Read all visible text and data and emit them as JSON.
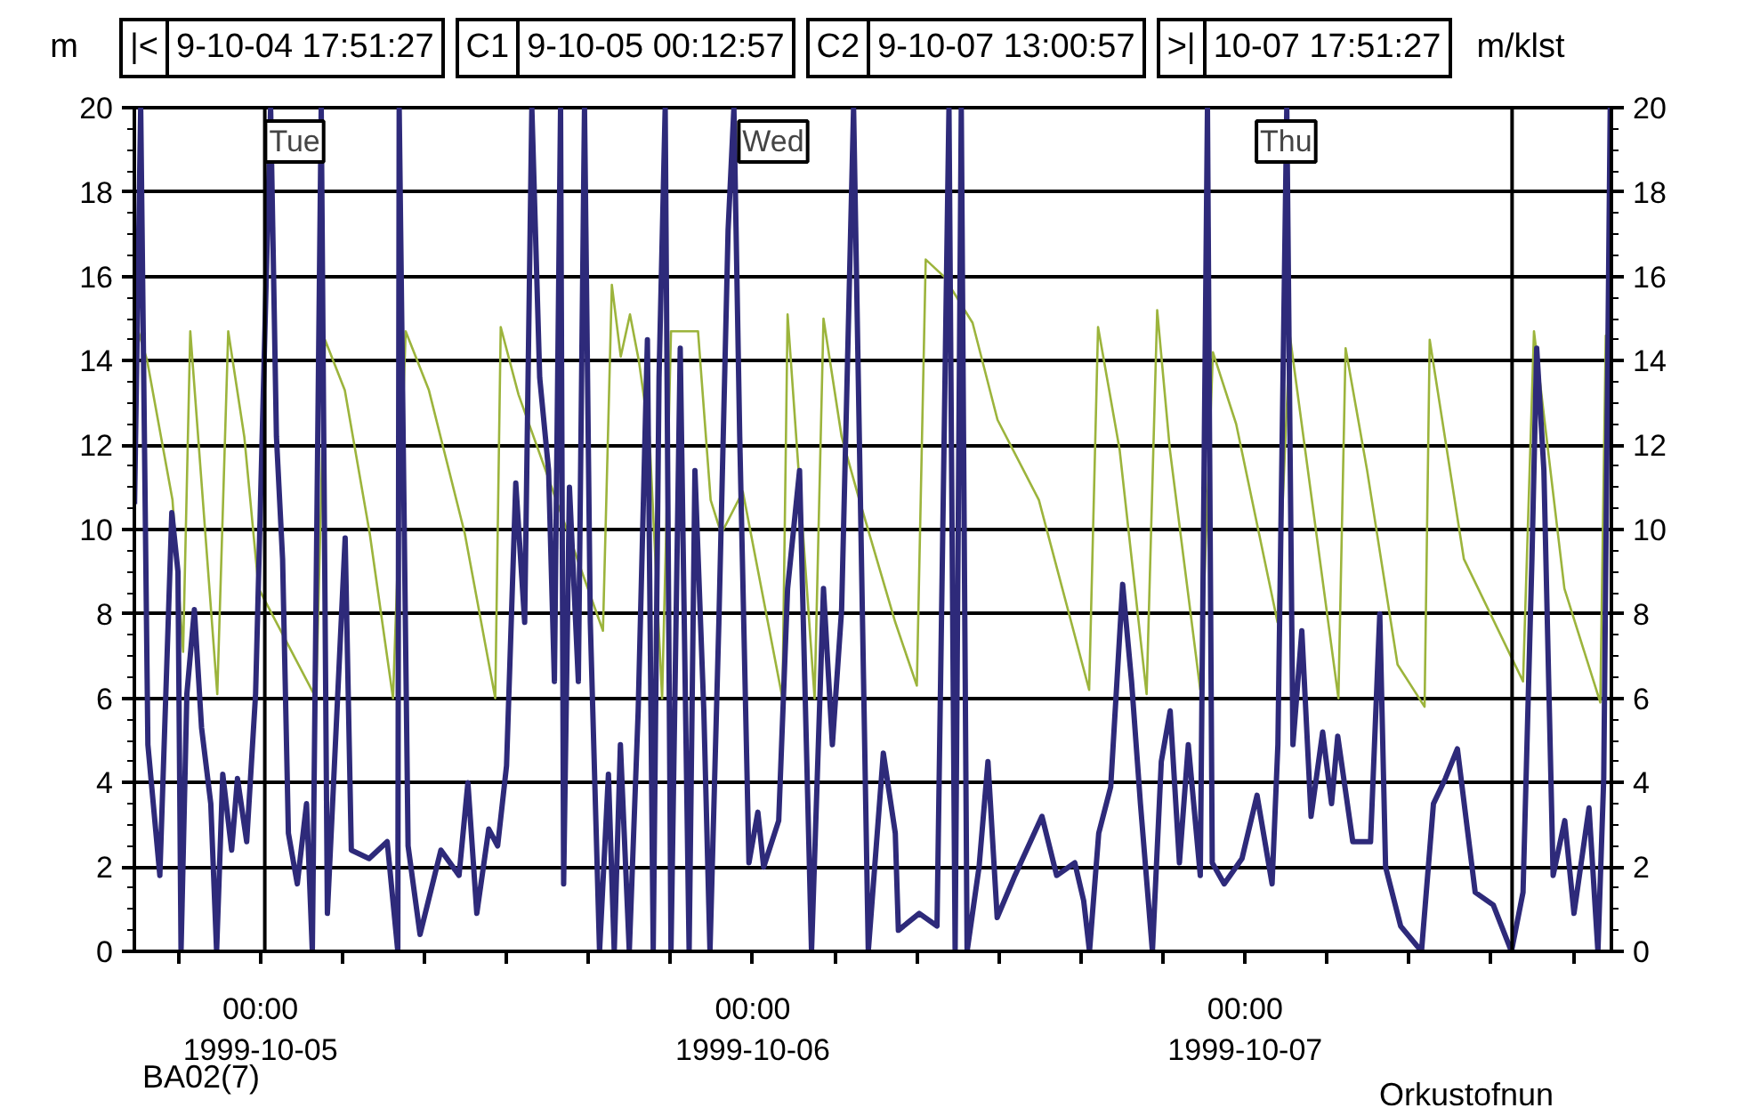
{
  "chart_data": {
    "type": "line",
    "ylabel": "m",
    "y2label": "m/klst",
    "xlim": [
      "1999-10-04T17:51:27",
      "1999-10-07T17:51:27"
    ],
    "xticks": [
      {
        "value": "1999-10-04T20:00",
        "label": null
      },
      {
        "value": "1999-10-05T00:00",
        "label": "00:00\n1999-10-05"
      },
      {
        "value": "1999-10-05T04:00",
        "label": null
      },
      {
        "value": "1999-10-05T08:00",
        "label": null
      },
      {
        "value": "1999-10-05T12:00",
        "label": null
      },
      {
        "value": "1999-10-05T16:00",
        "label": null
      },
      {
        "value": "1999-10-05T20:00",
        "label": null
      },
      {
        "value": "1999-10-06T00:00",
        "label": "00:00\n1999-10-06"
      },
      {
        "value": "1999-10-06T04:00",
        "label": null
      },
      {
        "value": "1999-10-06T08:00",
        "label": null
      },
      {
        "value": "1999-10-06T12:00",
        "label": null
      },
      {
        "value": "1999-10-06T16:00",
        "label": null
      },
      {
        "value": "1999-10-06T20:00",
        "label": null
      },
      {
        "value": "1999-10-07T00:00",
        "label": "00:00\n1999-10-07"
      },
      {
        "value": "1999-10-07T04:00",
        "label": null
      },
      {
        "value": "1999-10-07T08:00",
        "label": null
      },
      {
        "value": "1999-10-07T12:00",
        "label": null
      },
      {
        "value": "1999-10-07T16:00",
        "label": null
      }
    ],
    "ylim": [
      0,
      20
    ],
    "yticks": [
      0,
      2,
      4,
      6,
      8,
      10,
      12,
      14,
      16,
      18,
      20
    ],
    "y2lim": [
      0,
      20
    ],
    "y2ticks": [
      0,
      2,
      4,
      6,
      8,
      10,
      12,
      14,
      16,
      18,
      20
    ],
    "grid": "y",
    "marker": "none",
    "line_style": "solid",
    "series": [
      {
        "color": "#9cb43c",
        "axis": "y2",
        "x": [
          "1999-10-04T17:52",
          "1999-10-04T18:29",
          "1999-10-04T19:43",
          "1999-10-04T20:14",
          "1999-10-04T20:35",
          "1999-10-04T21:54",
          "1999-10-04T22:26",
          "1999-10-04T23:13",
          "1999-10-04T23:55",
          "1999-10-05T02:43",
          "1999-10-05T03:09",
          "1999-10-05T04:07",
          "1999-10-05T05:20",
          "1999-10-05T06:28",
          "1999-10-05T07:05",
          "1999-10-05T08:13",
          "1999-10-05T09:58",
          "1999-10-05T11:27",
          "1999-10-05T11:43",
          "1999-10-05T12:35",
          "1999-10-05T16:42",
          "1999-10-05T17:08",
          "1999-10-05T17:34",
          "1999-10-05T18:01",
          "1999-10-05T18:27",
          "1999-10-05T18:58",
          "1999-10-05T19:35",
          "1999-10-05T20:01",
          "1999-10-05T21:20",
          "1999-10-05T21:57",
          "1999-10-05T22:28",
          "1999-10-05T23:31",
          "1999-10-06T01:27",
          "1999-10-06T01:42",
          "1999-10-06T03:01",
          "1999-10-06T03:27",
          "1999-10-06T04:20",
          "1999-10-06T05:12",
          "1999-10-06T06:57",
          "1999-10-06T08:00",
          "1999-10-06T08:26",
          "1999-10-06T09:19",
          "1999-10-06T10:43",
          "1999-10-06T11:56",
          "1999-10-06T13:57",
          "1999-10-06T16:24",
          "1999-10-06T16:50",
          "1999-10-06T17:53",
          "1999-10-06T19:12",
          "1999-10-06T19:43",
          "1999-10-06T20:20",
          "1999-10-06T21:49",
          "1999-10-06T22:26",
          "1999-10-06T23:34",
          "1999-10-07T01:35",
          "1999-10-07T02:11",
          "1999-10-07T04:33",
          "1999-10-07T04:54",
          "1999-10-07T05:57",
          "1999-10-07T07:26",
          "1999-10-07T08:45",
          "1999-10-07T09:00",
          "1999-10-07T10:40",
          "1999-10-07T13:33",
          "1999-10-07T14:05",
          "1999-10-07T15:34",
          "1999-10-07T17:19",
          "1999-10-07T17:35",
          "1999-10-07T17:50"
        ],
        "values": [
          15.0,
          14.0,
          10.7,
          7.1,
          14.7,
          6.1,
          14.7,
          12.2,
          8.6,
          6.0,
          14.5,
          13.3,
          9.9,
          6.0,
          14.7,
          13.3,
          9.9,
          6.0,
          14.8,
          13.2,
          7.6,
          15.8,
          14.1,
          15.1,
          14.0,
          12.2,
          6.0,
          14.7,
          14.7,
          10.7,
          9.9,
          10.9,
          6.0,
          15.1,
          6.0,
          15.0,
          12.2,
          10.7,
          7.8,
          6.3,
          16.4,
          16.0,
          14.9,
          12.6,
          10.7,
          6.2,
          14.8,
          11.9,
          6.1,
          15.2,
          11.9,
          6.2,
          14.2,
          12.5,
          7.8,
          14.6,
          6.0,
          14.3,
          11.4,
          6.8,
          5.8,
          14.5,
          9.3,
          6.4,
          14.7,
          8.6,
          5.9,
          14.6,
          13.3
        ]
      },
      {
        "color": "#2e2a7a",
        "x": [
          "1999-10-04T17:52",
          "1999-10-04T18:10",
          "1999-10-04T18:31",
          "1999-10-04T19:06",
          "1999-10-04T19:41",
          "1999-10-04T19:59",
          "1999-10-04T20:08",
          "1999-10-04T20:25",
          "1999-10-04T20:47",
          "1999-10-04T21:08",
          "1999-10-04T21:35",
          "1999-10-04T21:52",
          "1999-10-04T22:10",
          "1999-10-04T22:36",
          "1999-10-04T22:53",
          "1999-10-04T23:20",
          "1999-10-04T23:46",
          "1999-10-05T00:30",
          "1999-10-05T00:47",
          "1999-10-05T01:05",
          "1999-10-05T01:22",
          "1999-10-05T01:48",
          "1999-10-05T02:15",
          "1999-10-05T02:32",
          "1999-10-05T02:58",
          "1999-10-05T03:16",
          "1999-10-05T04:08",
          "1999-10-05T04:26",
          "1999-10-05T05:18",
          "1999-10-05T06:11",
          "1999-10-05T06:42",
          "1999-10-05T06:46",
          "1999-10-05T07:12",
          "1999-10-05T07:47",
          "1999-10-05T08:48",
          "1999-10-05T09:41",
          "1999-10-05T10:07",
          "1999-10-05T10:33",
          "1999-10-05T11:08",
          "1999-10-05T11:34",
          "1999-10-05T12:00",
          "1999-10-05T12:27",
          "1999-10-05T12:53",
          "1999-10-05T13:14",
          "1999-10-05T13:37",
          "1999-10-05T14:03",
          "1999-10-05T14:20",
          "1999-10-05T14:38",
          "1999-10-05T14:47",
          "1999-10-05T15:04",
          "1999-10-05T15:30",
          "1999-10-05T15:48",
          "1999-10-05T16:05",
          "1999-10-05T16:32",
          "1999-10-05T16:58",
          "1999-10-05T17:15",
          "1999-10-05T17:33",
          "1999-10-05T17:59",
          "1999-10-05T18:25",
          "1999-10-05T18:52",
          "1999-10-05T19:09",
          "1999-10-05T19:26",
          "1999-10-05T19:44",
          "1999-10-05T20:01",
          "1999-10-05T20:28",
          "1999-10-05T20:54",
          "1999-10-05T21:11",
          "1999-10-05T21:37",
          "1999-10-05T21:55",
          "1999-10-05T22:21",
          "1999-10-05T22:48",
          "1999-10-05T23:05",
          "1999-10-05T23:22",
          "1999-10-05T23:49",
          "1999-10-06T00:15",
          "1999-10-06T00:32",
          "1999-10-06T01:16",
          "1999-10-06T01:42",
          "1999-10-06T02:17",
          "1999-10-06T02:52",
          "1999-10-06T03:27",
          "1999-10-06T03:53",
          "1999-10-06T04:20",
          "1999-10-06T04:55",
          "1999-10-06T05:38",
          "1999-10-06T06:22",
          "1999-10-06T06:57",
          "1999-10-06T07:06",
          "1999-10-06T08:07",
          "1999-10-06T08:59",
          "1999-10-06T09:34",
          "1999-10-06T09:52",
          "1999-10-06T10:10",
          "1999-10-06T10:27",
          "1999-10-06T11:02",
          "1999-10-06T11:28",
          "1999-10-06T11:55",
          "1999-10-06T12:47",
          "1999-10-06T14:06",
          "1999-10-06T14:49",
          "1999-10-06T15:42",
          "1999-10-06T16:08",
          "1999-10-06T16:25",
          "1999-10-06T16:52",
          "1999-10-06T17:27",
          "1999-10-06T18:02",
          "1999-10-06T18:28",
          "1999-10-06T18:54",
          "1999-10-06T19:29",
          "1999-10-06T19:55",
          "1999-10-06T20:21",
          "1999-10-06T20:48",
          "1999-10-06T21:14",
          "1999-10-06T21:49",
          "1999-10-06T22:10",
          "1999-10-06T22:24",
          "1999-10-06T22:59",
          "1999-10-06T23:51",
          "1999-10-07T00:35",
          "1999-10-07T01:19",
          "1999-10-07T01:36",
          "1999-10-07T02:02",
          "1999-10-07T02:20",
          "1999-10-07T02:46",
          "1999-10-07T03:13",
          "1999-10-07T03:47",
          "1999-10-07T04:13",
          "1999-10-07T04:31",
          "1999-10-07T05:15",
          "1999-10-07T06:07",
          "1999-10-07T06:34",
          "1999-10-07T06:51",
          "1999-10-07T07:35",
          "1999-10-07T08:36",
          "1999-10-07T09:11",
          "1999-10-07T09:46",
          "1999-10-07T10:21",
          "1999-10-07T11:13",
          "1999-10-07T12:06",
          "1999-10-07T12:59",
          "1999-10-07T13:33",
          "1999-10-07T13:59",
          "1999-10-07T14:13",
          "1999-10-07T14:34",
          "1999-10-07T15:01",
          "1999-10-07T15:35",
          "1999-10-07T16:02",
          "1999-10-07T16:46",
          "1999-10-07T17:12",
          "1999-10-07T17:29",
          "1999-10-07T17:48"
        ],
        "values": [
          10.6,
          20,
          4.9,
          1.8,
          10.4,
          9.0,
          0,
          6.1,
          8.1,
          5.3,
          3.5,
          0,
          4.2,
          2.4,
          4.1,
          2.6,
          6.1,
          20,
          12.2,
          9.3,
          2.8,
          1.6,
          3.5,
          0,
          20,
          0.9,
          9.8,
          2.4,
          2.2,
          2.6,
          0,
          20,
          2.5,
          0.4,
          2.4,
          1.8,
          4.0,
          0.9,
          2.9,
          2.5,
          4.4,
          11.1,
          7.8,
          20,
          13.6,
          11.4,
          6.4,
          20,
          1.6,
          11.0,
          6.4,
          20,
          7.8,
          0,
          4.2,
          0,
          4.9,
          0,
          5.7,
          14.5,
          0,
          13.6,
          20,
          0,
          14.3,
          0,
          11.4,
          5.7,
          0,
          7.8,
          17.1,
          20,
          12.2,
          2.1,
          3.3,
          2.0,
          3.1,
          8.6,
          11.4,
          0,
          8.6,
          4.9,
          8.1,
          20,
          0,
          4.7,
          2.8,
          0.5,
          0.9,
          0.6,
          20,
          0,
          20,
          0,
          2.0,
          4.5,
          0.8,
          1.8,
          3.2,
          1.8,
          2.1,
          1.2,
          0,
          2.8,
          3.9,
          8.7,
          6.4,
          3.5,
          0,
          4.5,
          5.7,
          2.1,
          4.9,
          1.8,
          20,
          2.1,
          1.6,
          2.2,
          3.7,
          1.6,
          4.9,
          20,
          4.9,
          7.6,
          3.2,
          5.2,
          3.5,
          5.1,
          2.6,
          2.6,
          8.0,
          2.0,
          0.6,
          0,
          3.5,
          4.1,
          4.8,
          1.4,
          1.1,
          0,
          1.4,
          9.3,
          14.3,
          11.4,
          1.8,
          3.1,
          0.9,
          3.4,
          0,
          4.1,
          20
        ]
      }
    ],
    "ref_lines": [
      {
        "axis": "x",
        "value": "1999-10-05T00:12:57",
        "color": "#000000"
      },
      {
        "axis": "x",
        "value": "1999-10-07T13:00:57",
        "color": "#000000"
      }
    ],
    "annotations": [
      "|<",
      "9-10-04 17:51:27",
      "C1",
      "9-10-05 00:12:57",
      "C2",
      "9-10-07 13:00:57",
      ">|",
      "10-07 17:51:27",
      "BA02(7)",
      "Orkustofnun",
      {
        "text": "Tue",
        "x": "1999-10-05T01:40",
        "y": 19.2
      },
      {
        "text": "Wed",
        "x": "1999-10-06T01:00",
        "y": 19.2
      },
      {
        "text": "Thu",
        "x": "1999-10-07T02:00",
        "y": 19.2
      }
    ]
  }
}
